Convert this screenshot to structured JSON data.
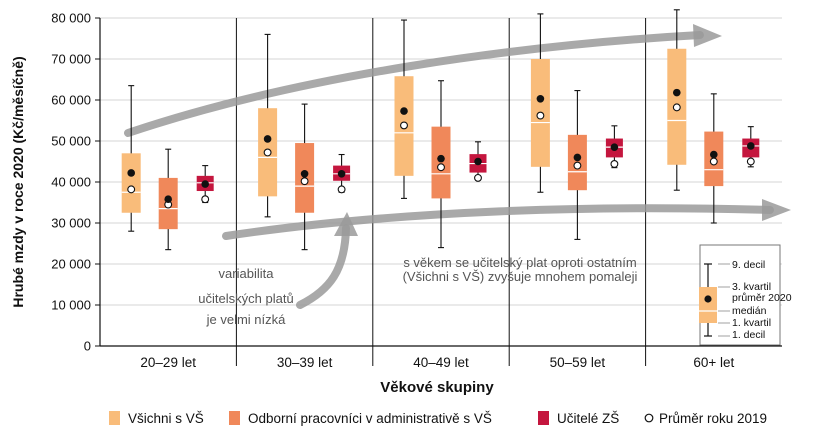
{
  "chart_data": {
    "type": "boxplot",
    "ylabel": "Hrubé mzdy v roce 2020 (Kč/měsíčně)",
    "xlabel": "Věkové skupiny",
    "ylim": [
      0,
      80000
    ],
    "yticks": [
      0,
      10000,
      20000,
      30000,
      40000,
      50000,
      60000,
      70000,
      80000
    ],
    "ytick_labels": [
      "0",
      "10 000",
      "20 000",
      "30 000",
      "40 000",
      "50 000",
      "60 000",
      "70 000",
      "80 000"
    ],
    "grid": "horizontal",
    "categories": [
      "20–29 let",
      "30–39 let",
      "40–49 let",
      "50–59 let",
      "60+ let"
    ],
    "series": [
      {
        "name": "Všichni s VŠ",
        "color": "#f9bc7a",
        "data": [
          {
            "d1": 28000,
            "q1": 32500,
            "median": 37500,
            "mean2020": 42200,
            "q3": 47000,
            "d9": 63500,
            "mean2019": 38200
          },
          {
            "d1": 31500,
            "q1": 36500,
            "median": 46000,
            "mean2020": 50500,
            "q3": 58000,
            "d9": 76000,
            "mean2019": 47200
          },
          {
            "d1": 36000,
            "q1": 41500,
            "median": 52000,
            "mean2020": 57300,
            "q3": 65800,
            "d9": 79500,
            "mean2019": 53800
          },
          {
            "d1": 37500,
            "q1": 43700,
            "median": 54500,
            "mean2020": 60300,
            "q3": 70000,
            "d9": 81000,
            "mean2019": 56200
          },
          {
            "d1": 38000,
            "q1": 44200,
            "median": 55000,
            "mean2020": 61800,
            "q3": 72500,
            "d9": 82000,
            "mean2019": 58200
          }
        ]
      },
      {
        "name": "Odborní pracovníci v administrativě s VŠ",
        "color": "#f0885a",
        "data": [
          {
            "d1": 23500,
            "q1": 28500,
            "median": 33500,
            "mean2020": 35800,
            "q3": 41000,
            "d9": 48000,
            "mean2019": 34500
          },
          {
            "d1": 23500,
            "q1": 32500,
            "median": 39000,
            "mean2020": 42000,
            "q3": 49500,
            "d9": 59000,
            "mean2019": 40200
          },
          {
            "d1": 24000,
            "q1": 36000,
            "median": 42000,
            "mean2020": 45700,
            "q3": 53500,
            "d9": 64700,
            "mean2019": 43600
          },
          {
            "d1": 26000,
            "q1": 38000,
            "median": 42500,
            "mean2020": 46000,
            "q3": 51500,
            "d9": 62300,
            "mean2019": 44000
          },
          {
            "d1": 30000,
            "q1": 39000,
            "median": 43000,
            "mean2020": 46700,
            "q3": 52300,
            "d9": 61500,
            "mean2019": 45000
          }
        ]
      },
      {
        "name": "Učitelé ZŠ",
        "color": "#c4163e",
        "data": [
          {
            "d1": 35000,
            "q1": 37800,
            "median": 39800,
            "mean2020": 39500,
            "q3": 41500,
            "d9": 44000,
            "mean2019": 35800
          },
          {
            "d1": 37500,
            "q1": 40300,
            "median": 42000,
            "mean2020": 42000,
            "q3": 44000,
            "d9": 46700,
            "mean2019": 38200
          },
          {
            "d1": 41000,
            "q1": 42300,
            "median": 44500,
            "mean2020": 45000,
            "q3": 46800,
            "d9": 49800,
            "mean2019": 41000
          },
          {
            "d1": 43500,
            "q1": 46000,
            "median": 48500,
            "mean2020": 48500,
            "q3": 50600,
            "d9": 53700,
            "mean2019": 44400
          },
          {
            "d1": 43700,
            "q1": 46000,
            "median": 48800,
            "mean2020": 48800,
            "q3": 50600,
            "d9": 53500,
            "mean2019": 45000
          }
        ]
      }
    ],
    "legend_mean2019": "Průměr roku 2019",
    "annotations": {
      "left": [
        "variabilita",
        "učitelských platů",
        "je velmi nízká"
      ],
      "right": [
        "s věkem se učitelský plat oproti ostatním",
        "(Všichni s VŠ) zvyšuje mnohem pomaleji"
      ]
    },
    "key": {
      "d9": "9. decil",
      "q3": "3. kvartil",
      "mean2020": "průměr 2020",
      "median": "medián",
      "q1": "1. kvartil",
      "d1": "1. decil"
    }
  }
}
